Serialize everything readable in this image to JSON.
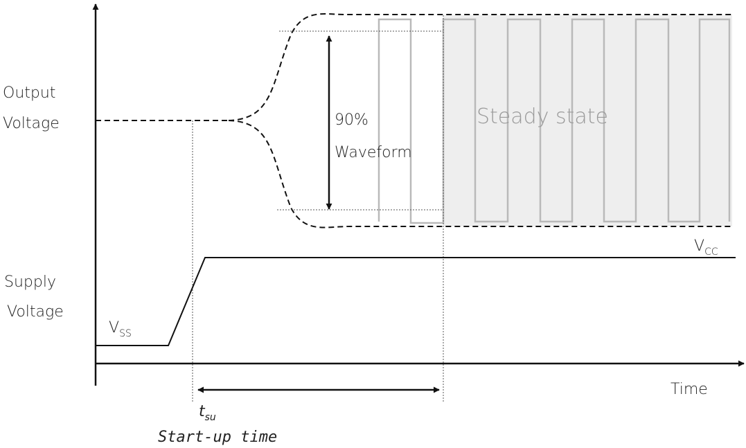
{
  "labels": {
    "output_voltage_line1": "Output",
    "output_voltage_line2": "Voltage",
    "supply_voltage_line1": "Supply",
    "supply_voltage_line2": "Voltage",
    "vss_base": "V",
    "vss_sub": "SS",
    "vcc_base": "V",
    "vcc_sub": "CC",
    "percent_90": "90%",
    "waveform": "Waveform",
    "steady_state": "Steady state",
    "time": "Time",
    "tsu_base": "t",
    "tsu_sub": "su",
    "startup_time": "Start-up time"
  },
  "colors": {
    "line": "#111111",
    "waveform": "#b9b9b9",
    "steady_fill": "#eeeeee",
    "steady_text": "#9a9a9a"
  }
}
